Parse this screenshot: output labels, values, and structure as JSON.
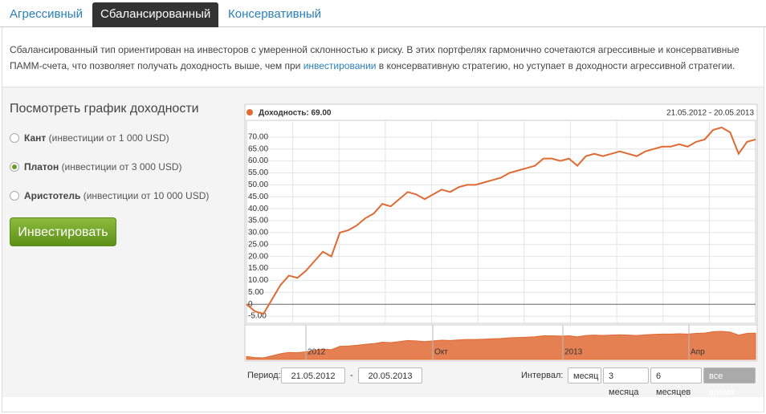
{
  "tabs": [
    "Агрессивный",
    "Сбалансированный",
    "Консервативный"
  ],
  "active_tab": 1,
  "description": {
    "before": "Сбалансированный тип ориентирован на инвесторов с умеренной склонностью к риску. В этих портфелях гармонично сочетаются агрессивные и консервативные ПАММ-счета, что позволяет получать доходность выше, чем при",
    "link": "инвестировании",
    "after": "в консервативную стратегию, но уступает в доходности агрессивной стратегии."
  },
  "sidebar": {
    "title": "Посмотреть график доходности",
    "options": [
      {
        "name": "Кант",
        "detail": "(инвестиции от 1 000 USD)"
      },
      {
        "name": "Платон",
        "detail": "(инвестиции от 3 000 USD)"
      },
      {
        "name": "Аристотель",
        "detail": "(инвестиции от 10 000 USD)"
      }
    ],
    "selected": 1,
    "button": "Инвестировать"
  },
  "chart_data": {
    "type": "line",
    "legend": "Доходность: 69.00",
    "date_range": "21.05.2012 - 20.05.2013",
    "series": [
      {
        "name": "Доходность",
        "color": "#e06a34",
        "values": [
          0,
          -3,
          -4,
          2,
          8,
          12,
          11,
          14,
          18,
          22,
          20,
          30,
          31,
          33,
          36,
          38,
          42,
          41,
          44,
          47,
          46,
          44,
          46,
          48,
          47,
          49,
          50,
          50,
          51,
          52,
          53,
          55,
          56,
          57,
          58,
          61,
          61,
          60,
          61,
          58,
          62,
          63,
          62,
          63,
          64,
          63,
          62,
          64,
          65,
          66,
          66,
          67,
          66,
          68,
          69,
          73,
          74,
          72,
          63,
          68,
          69
        ]
      }
    ],
    "ylim": [
      -8,
      77
    ],
    "yticks": [
      {
        "value": -5,
        "label": "-5.00"
      },
      0,
      {
        "value": 5,
        "label": "5.00"
      },
      {
        "value": 10,
        "label": "10.00"
      },
      {
        "value": 15,
        "label": "15.00"
      },
      {
        "value": 20,
        "label": "20.00"
      },
      {
        "value": 25,
        "label": "25.00"
      },
      {
        "value": 30,
        "label": "30.00"
      },
      {
        "value": 35,
        "label": "35.00"
      },
      {
        "value": 40,
        "label": "40.00"
      },
      {
        "value": 45,
        "label": "45.00"
      },
      {
        "value": 50,
        "label": "50.00"
      },
      {
        "value": 55,
        "label": "55.00"
      },
      {
        "value": 60,
        "label": "60.00"
      },
      {
        "value": 65,
        "label": "65.00"
      },
      {
        "value": 70,
        "label": "70.00"
      }
    ],
    "grid": true,
    "navigator_ticks": [
      "2012",
      "Окт",
      "2013",
      "Апр"
    ]
  },
  "period": {
    "label": "Период:",
    "from": "21.05.2012",
    "separator": "-",
    "to": "20.05.2013"
  },
  "interval": {
    "label": "Интервал:",
    "options": [
      "месяц",
      "3 месяца",
      "6 месяцев",
      "все время"
    ],
    "selected": 3
  }
}
